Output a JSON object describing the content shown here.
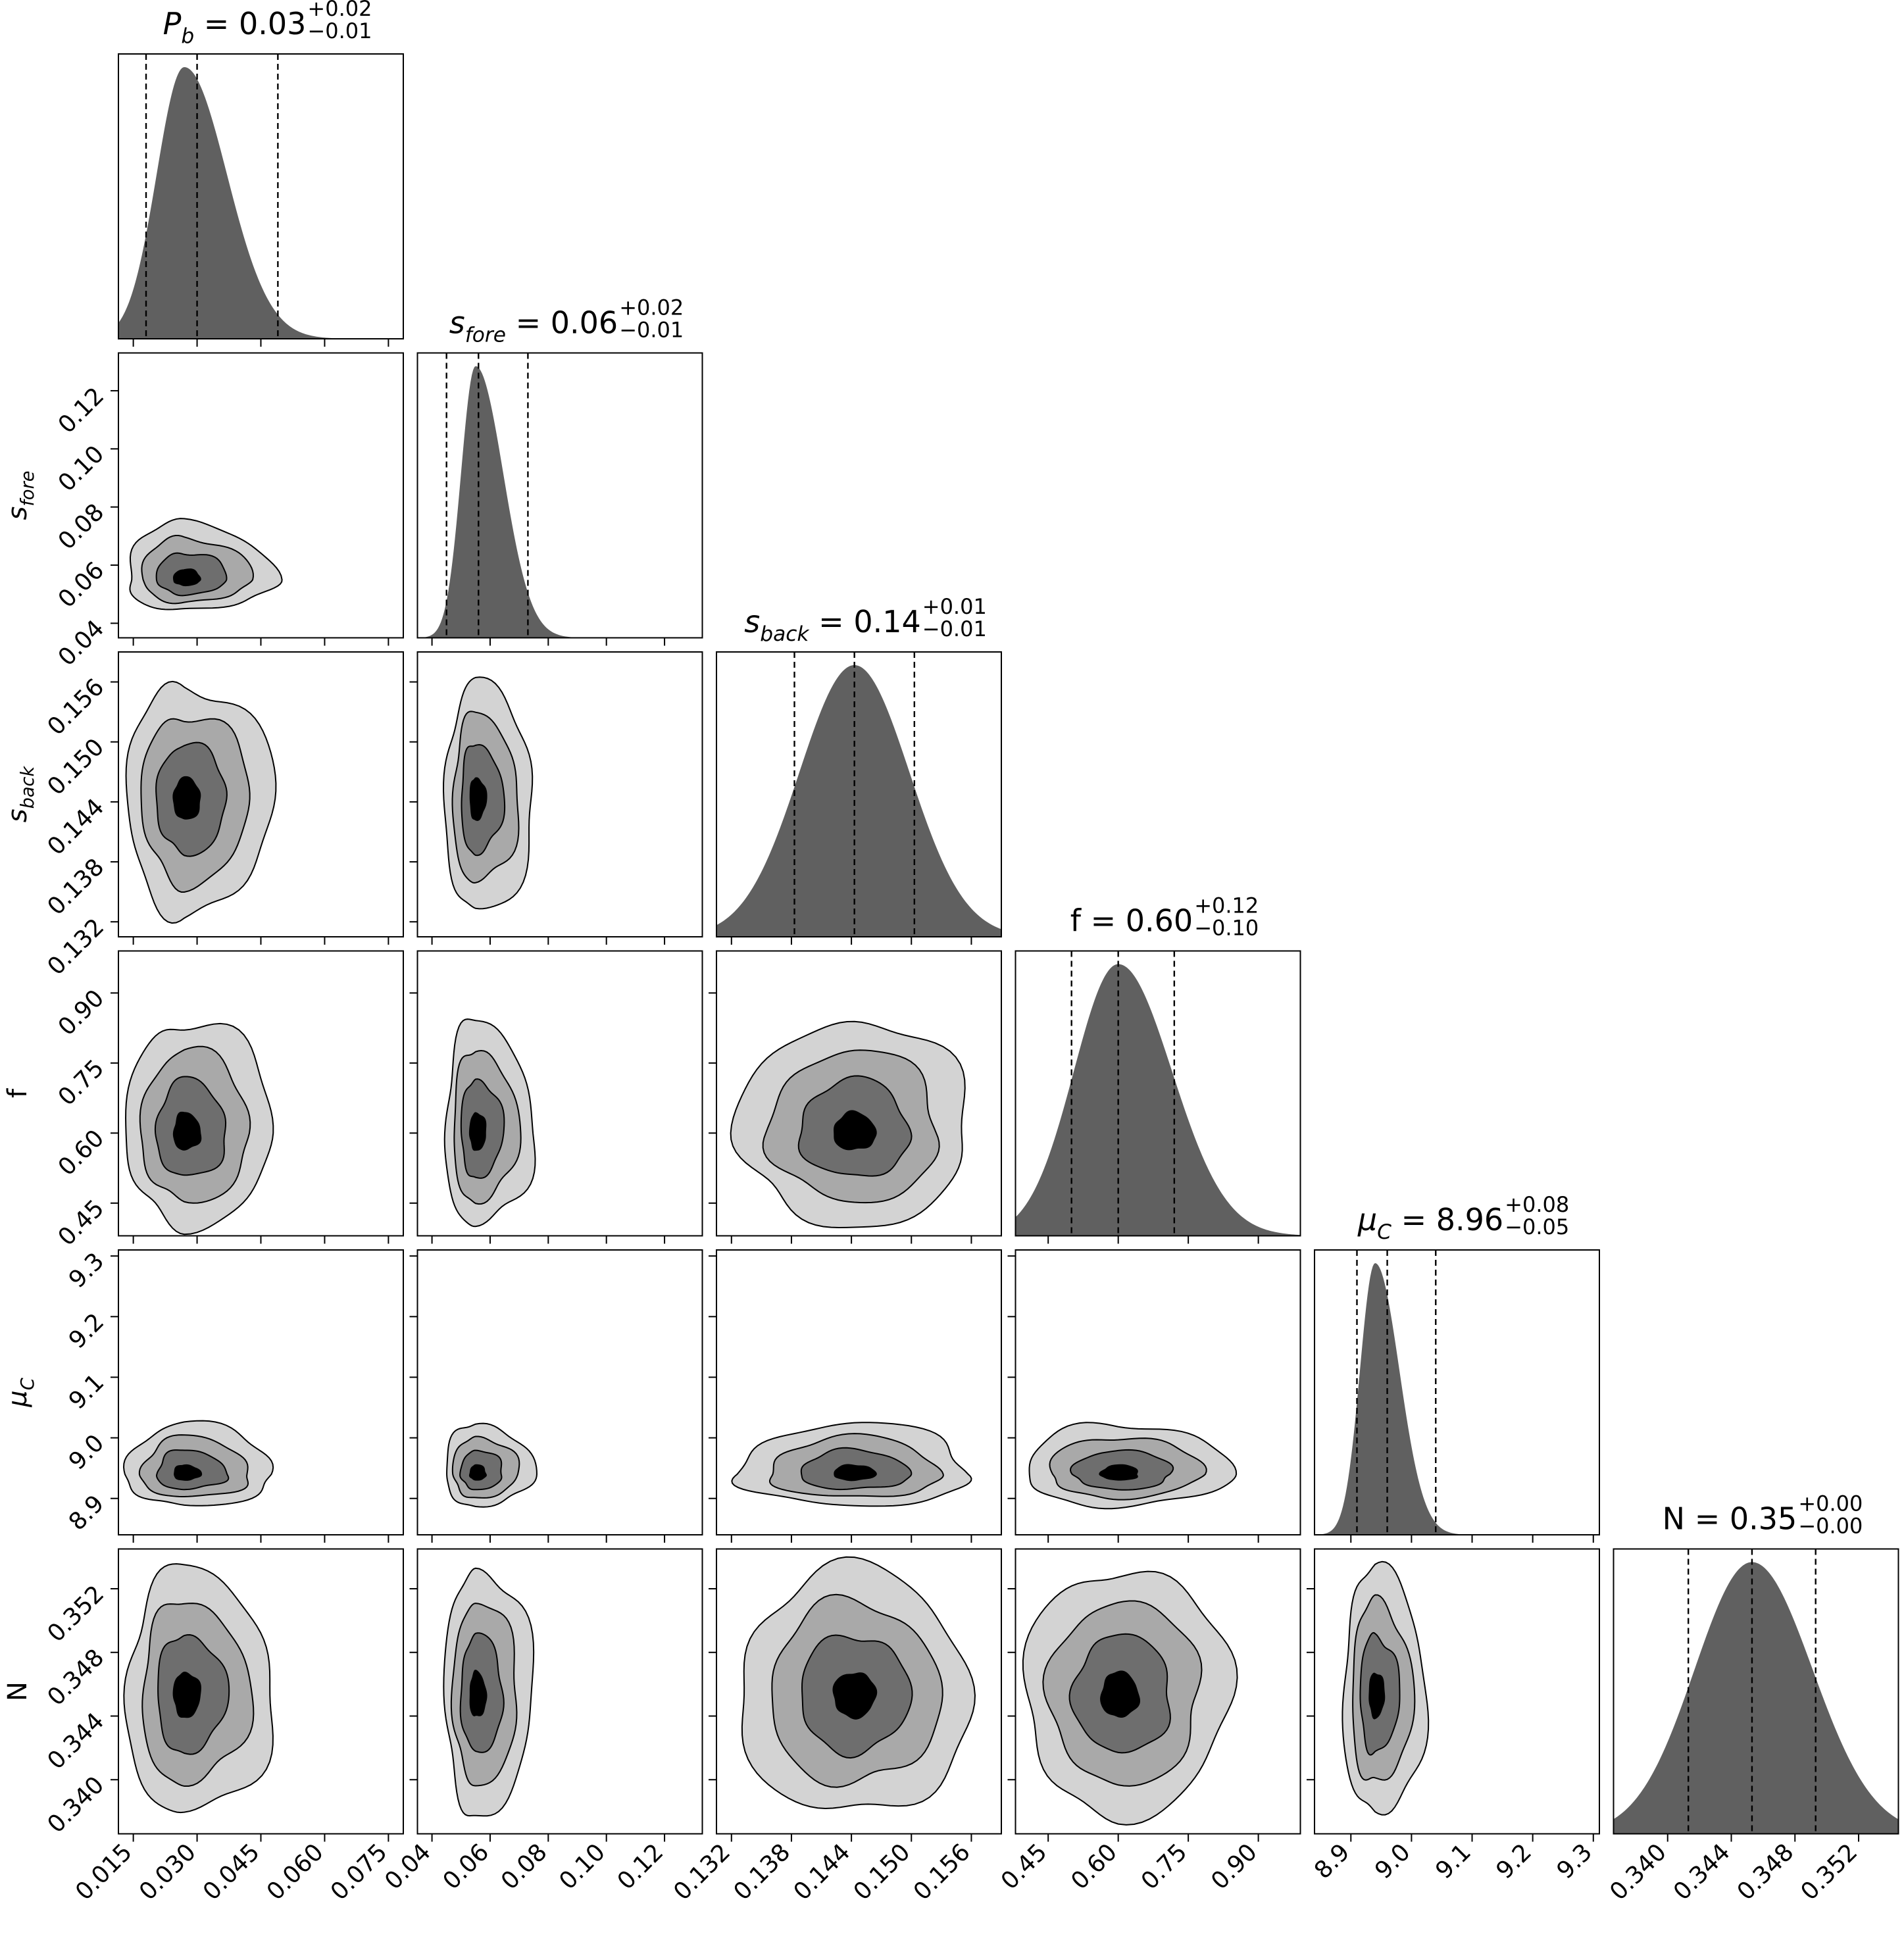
{
  "chart_data": {
    "type": "corner",
    "parameters": [
      {
        "key": "Pb",
        "label": "P_b",
        "ticks": [
          "0.015",
          "0.030",
          "0.045",
          "0.060",
          "0.075"
        ],
        "tick_values": [
          0.015,
          0.03,
          0.045,
          0.06,
          0.075
        ],
        "range": [
          0.0115,
          0.0785
        ],
        "median": 0.03,
        "q16": 0.018,
        "q84": 0.049,
        "peak": 0.027,
        "sigma_lo": 0.0065,
        "sigma_hi": 0.01,
        "title_main": "P",
        "title_sub": "b",
        "title_value": " = 0.03",
        "title_plus": "+0.02",
        "title_minus": "−0.01",
        "axis_main": "P",
        "axis_sub": "b"
      },
      {
        "key": "sfore",
        "label": "s_fore",
        "ticks": [
          "0.04",
          "0.06",
          "0.08",
          "0.10",
          "0.12"
        ],
        "tick_values": [
          0.04,
          0.06,
          0.08,
          0.1,
          0.12
        ],
        "range": [
          0.035,
          0.133
        ],
        "median": 0.056,
        "q16": 0.045,
        "q84": 0.073,
        "peak": 0.055,
        "sigma_lo": 0.005,
        "sigma_hi": 0.0095,
        "title_main": "s",
        "title_sub": "fore",
        "title_value": " = 0.06",
        "title_plus": "+0.02",
        "title_minus": "−0.01",
        "axis_main": "s",
        "axis_sub": "fore"
      },
      {
        "key": "sback",
        "label": "s_back",
        "ticks": [
          "0.132",
          "0.138",
          "0.144",
          "0.150",
          "0.156"
        ],
        "tick_values": [
          0.132,
          0.138,
          0.144,
          0.15,
          0.156
        ],
        "range": [
          0.1305,
          0.159
        ],
        "median": 0.1443,
        "q16": 0.1383,
        "q84": 0.1503,
        "peak": 0.1443,
        "sigma_lo": 0.0055,
        "sigma_hi": 0.0055,
        "title_main": "s",
        "title_sub": "back",
        "title_value": " = 0.14",
        "title_plus": "+0.01",
        "title_minus": "−0.01",
        "axis_main": "s",
        "axis_sub": "back"
      },
      {
        "key": "f",
        "label": "f",
        "ticks": [
          "0.45",
          "0.60",
          "0.75",
          "0.90"
        ],
        "tick_values": [
          0.45,
          0.6,
          0.75,
          0.9
        ],
        "range": [
          0.38,
          0.99
        ],
        "median": 0.6,
        "q16": 0.5,
        "q84": 0.72,
        "peak": 0.6,
        "sigma_lo": 0.095,
        "sigma_hi": 0.115,
        "title_main": "f",
        "title_sub": "",
        "title_value": " = 0.60",
        "title_plus": "+0.12",
        "title_minus": "−0.10",
        "axis_main": "f",
        "axis_sub": ""
      },
      {
        "key": "muC",
        "label": "μ_C",
        "ticks": [
          "8.9",
          "9.0",
          "9.1",
          "9.2",
          "9.3"
        ],
        "tick_values": [
          8.9,
          9.0,
          9.1,
          9.2,
          9.3
        ],
        "range": [
          8.84,
          9.31
        ],
        "median": 8.96,
        "q16": 8.91,
        "q84": 9.04,
        "peak": 8.94,
        "sigma_lo": 0.025,
        "sigma_hi": 0.04,
        "title_main": "μ",
        "title_sub": "C",
        "title_value": " = 8.96",
        "title_plus": "+0.08",
        "title_minus": "−0.05",
        "axis_main": "μ",
        "axis_sub": "C"
      },
      {
        "key": "N",
        "label": "N",
        "ticks": [
          "0.340",
          "0.344",
          "0.348",
          "0.352"
        ],
        "tick_values": [
          0.34,
          0.344,
          0.348,
          0.352
        ],
        "range": [
          0.3366,
          0.3545
        ],
        "median": 0.3453,
        "q16": 0.3413,
        "q84": 0.3493,
        "peak": 0.3453,
        "sigma_lo": 0.0036,
        "sigma_hi": 0.0038,
        "title_main": "N",
        "title_sub": "",
        "title_value": " = 0.35",
        "title_plus": "+0.00",
        "title_minus": "−0.00",
        "axis_main": "N",
        "axis_sub": ""
      }
    ],
    "contour_levels": 4,
    "contour_fills": [
      "#d3d3d3",
      "#a9a9a9",
      "#6e6e6e",
      "#000000"
    ],
    "histogram_color": "#606060",
    "grid": false
  }
}
